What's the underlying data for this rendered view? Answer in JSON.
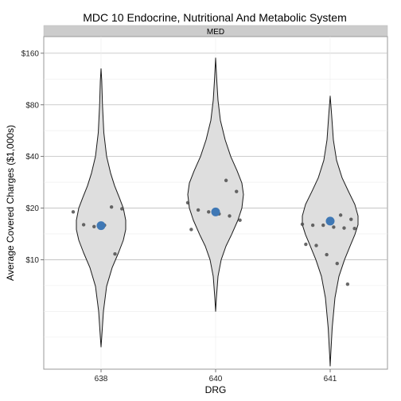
{
  "chart_data": {
    "type": "violin",
    "title": "MDC 10 Endocrine, Nutritional And Metabolic System",
    "facet_label": "MED",
    "xlabel": "DRG",
    "ylabel": "Average Covered Charges ($1,000s)",
    "y_scale": "log2",
    "y_ticks": [
      {
        "value": 10,
        "label": "$10"
      },
      {
        "value": 20,
        "label": "$20"
      },
      {
        "value": 40,
        "label": "$40"
      },
      {
        "value": 80,
        "label": "$80"
      },
      {
        "value": 160,
        "label": "$160"
      }
    ],
    "ylim": [
      2.3,
      200
    ],
    "grid": true,
    "categories": [
      "638",
      "640",
      "641"
    ],
    "colors": {
      "violin_fill": "#dedede",
      "violin_stroke": "#1a1a1a",
      "point": "#4d4d4d",
      "mean_point": "#3f78b5",
      "strip_fill": "#cccccc",
      "grid_major": "#bdbdbd",
      "grid_minor": "#ececec"
    },
    "violins": [
      {
        "category": "638",
        "profile": [
          [
            3.1,
            0
          ],
          [
            3.5,
            0.8
          ],
          [
            5,
            3
          ],
          [
            7,
            7
          ],
          [
            9,
            14
          ],
          [
            11,
            22
          ],
          [
            13,
            28
          ],
          [
            15,
            31
          ],
          [
            17,
            31
          ],
          [
            20,
            28
          ],
          [
            23,
            23
          ],
          [
            27,
            17
          ],
          [
            32,
            12
          ],
          [
            40,
            7
          ],
          [
            55,
            3.5
          ],
          [
            80,
            1.8
          ],
          [
            110,
            0.9
          ],
          [
            130,
            0
          ]
        ],
        "points": [
          20.3,
          19.8,
          19.0,
          16.0,
          15.6,
          15.9,
          10.8
        ],
        "mean": 15.8
      },
      {
        "category": "640",
        "profile": [
          [
            5,
            0
          ],
          [
            6,
            1
          ],
          [
            8,
            3
          ],
          [
            10,
            7
          ],
          [
            12,
            13
          ],
          [
            14,
            20
          ],
          [
            17,
            28
          ],
          [
            20,
            33
          ],
          [
            24,
            35
          ],
          [
            28,
            33
          ],
          [
            33,
            27
          ],
          [
            40,
            19
          ],
          [
            50,
            12
          ],
          [
            65,
            6
          ],
          [
            85,
            3
          ],
          [
            110,
            1.5
          ],
          [
            150,
            0
          ]
        ],
        "points": [
          29,
          25,
          21.5,
          19.5,
          19.0,
          18.5,
          18.0,
          17.0,
          15.0
        ],
        "mean": 19.0
      },
      {
        "category": "641",
        "profile": [
          [
            2.4,
            0
          ],
          [
            2.8,
            0.7
          ],
          [
            4,
            2.5
          ],
          [
            6,
            6
          ],
          [
            8,
            11
          ],
          [
            10,
            18
          ],
          [
            12,
            25
          ],
          [
            14,
            31
          ],
          [
            16,
            35
          ],
          [
            18,
            35
          ],
          [
            21,
            31
          ],
          [
            25,
            23
          ],
          [
            30,
            15
          ],
          [
            38,
            8
          ],
          [
            50,
            4
          ],
          [
            70,
            1.8
          ],
          [
            90,
            0
          ]
        ],
        "points": [
          18.2,
          17.2,
          16.1,
          15.9,
          15.9,
          15.5,
          15.3,
          15.2,
          12.3,
          12.1,
          10.7,
          9.5,
          7.2
        ],
        "mean": 16.8
      }
    ]
  }
}
